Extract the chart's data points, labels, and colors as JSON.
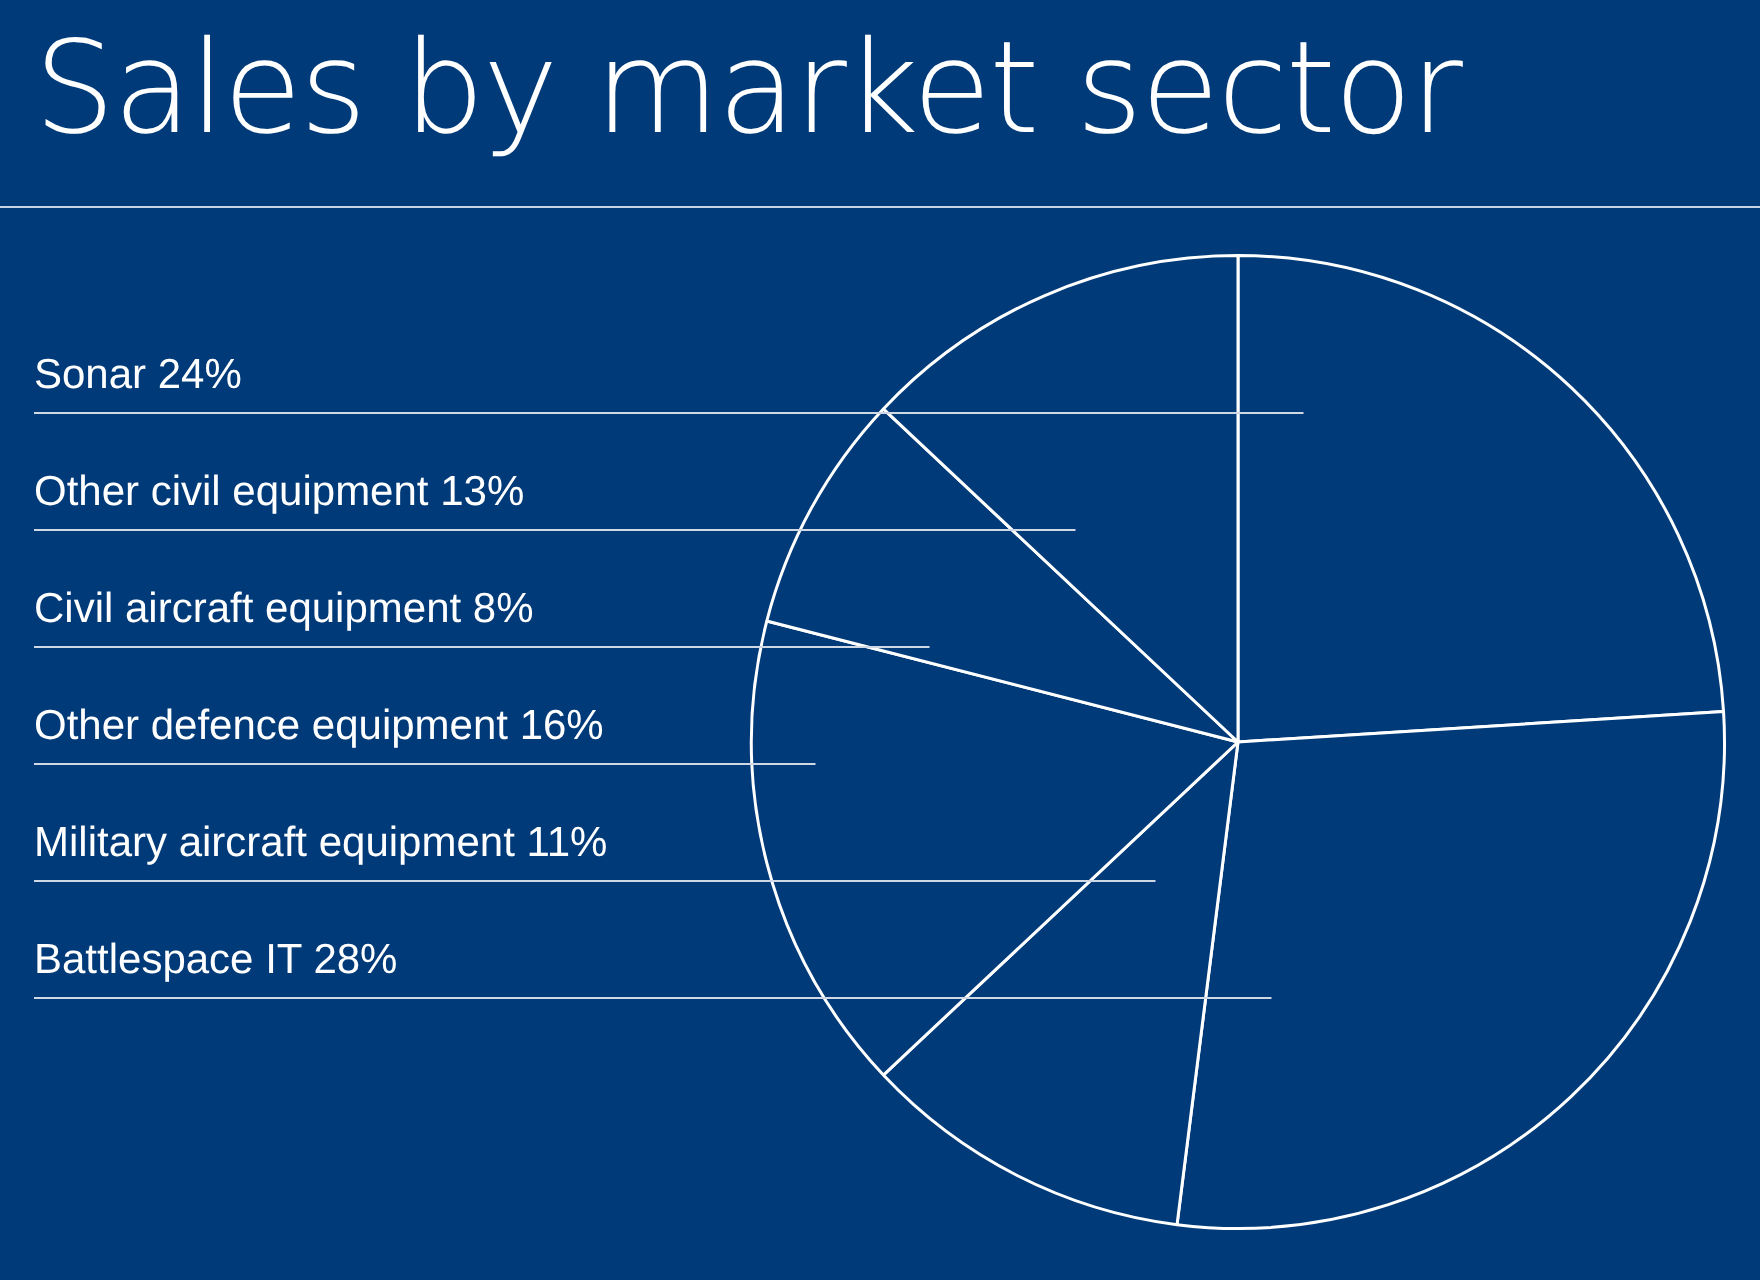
{
  "chart_data": {
    "type": "pie",
    "title": "Sales by market sector",
    "categories": [
      "Sonar",
      "Battlespace IT",
      "Military aircraft equipment",
      "Other defence equipment",
      "Civil aircraft equipment",
      "Other civil equipment"
    ],
    "values": [
      24,
      28,
      11,
      16,
      8,
      13
    ],
    "value_labels": [
      "24%",
      "28%",
      "11%",
      "16%",
      "8%",
      "13%"
    ],
    "colors": [
      "#003a78",
      "#003a78",
      "#003a78",
      "#003a78",
      "#003a78",
      "#003a78"
    ],
    "legend": false
  }
}
